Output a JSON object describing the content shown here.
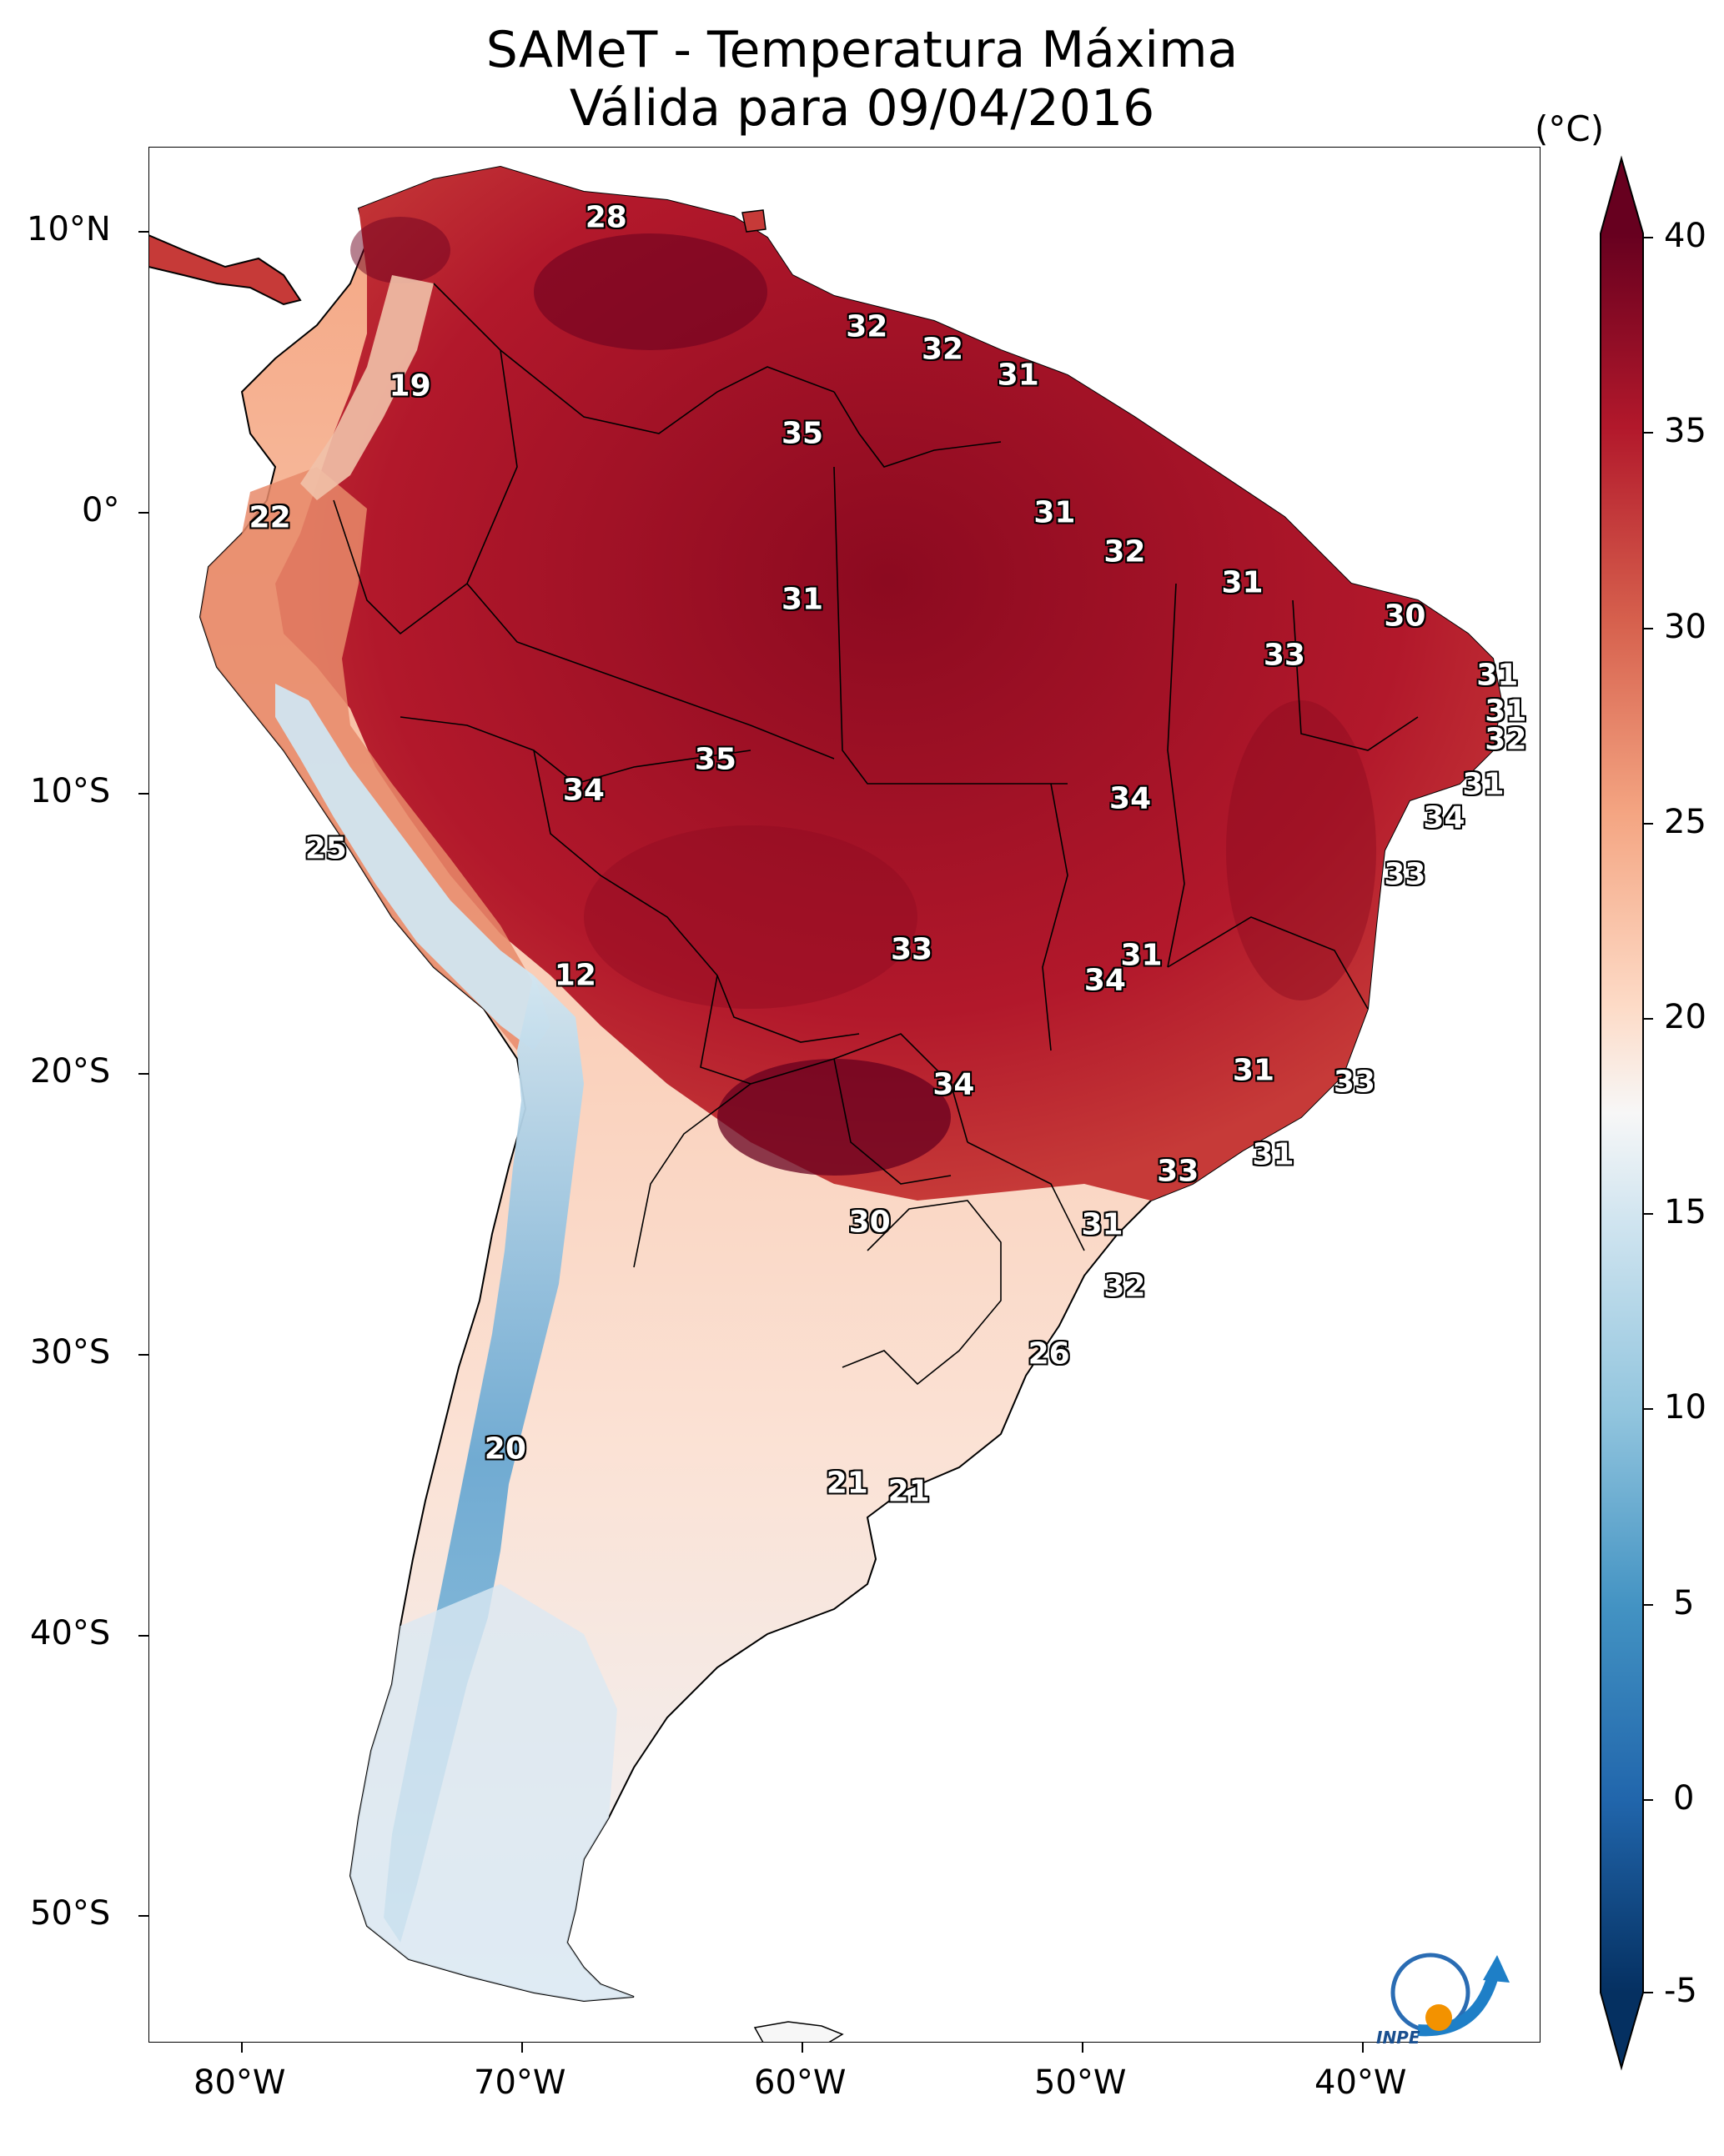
{
  "title": "SAMeT - Temperatura Máxima",
  "subtitle": "Válida para 09/04/2016",
  "colorbar": {
    "unit": "(°C)",
    "ticks": [
      "40",
      "35",
      "30",
      "25",
      "20",
      "15",
      "10",
      "5",
      "0",
      "-5"
    ],
    "range": [
      -5,
      40
    ],
    "colors": [
      "#053061",
      "#2166ac",
      "#4393c3",
      "#92c5de",
      "#d1e5f0",
      "#f7f7f7",
      "#fddbc7",
      "#f4a582",
      "#d6604d",
      "#b2182b",
      "#67001f"
    ]
  },
  "axes": {
    "lon_ticks": [
      "80°W",
      "70°W",
      "60°W",
      "50°W",
      "40°W"
    ],
    "lat_ticks": [
      "10°N",
      "0°",
      "10°S",
      "20°S",
      "30°S",
      "40°S",
      "50°S"
    ]
  },
  "city_labels": [
    {
      "value": "28",
      "lon": -67,
      "lat": 10.5
    },
    {
      "value": "19",
      "lon": -74,
      "lat": 4.5
    },
    {
      "value": "32",
      "lon": -57.7,
      "lat": 6.6
    },
    {
      "value": "32",
      "lon": -55,
      "lat": 5.8
    },
    {
      "value": "31",
      "lon": -52.3,
      "lat": 4.9
    },
    {
      "value": "35",
      "lon": -60,
      "lat": 2.8
    },
    {
      "value": "22",
      "lon": -79,
      "lat": -0.2
    },
    {
      "value": "31",
      "lon": -51,
      "lat": 0.0
    },
    {
      "value": "32",
      "lon": -48.5,
      "lat": -1.4
    },
    {
      "value": "31",
      "lon": -60,
      "lat": -3.1
    },
    {
      "value": "31",
      "lon": -44.3,
      "lat": -2.5
    },
    {
      "value": "30",
      "lon": -38.5,
      "lat": -3.7
    },
    {
      "value": "33",
      "lon": -42.8,
      "lat": -5.1
    },
    {
      "value": "31",
      "lon": -35.2,
      "lat": -5.8
    },
    {
      "value": "31",
      "lon": -34.9,
      "lat": -7.1
    },
    {
      "value": "32",
      "lon": -34.9,
      "lat": -8.1
    },
    {
      "value": "35",
      "lon": -63.1,
      "lat": -8.8
    },
    {
      "value": "34",
      "lon": -67.8,
      "lat": -9.9
    },
    {
      "value": "31",
      "lon": -35.7,
      "lat": -9.7
    },
    {
      "value": "34",
      "lon": -48.3,
      "lat": -10.2
    },
    {
      "value": "34",
      "lon": -37.1,
      "lat": -10.9
    },
    {
      "value": "25",
      "lon": -77,
      "lat": -12
    },
    {
      "value": "33",
      "lon": -38.5,
      "lat": -12.9
    },
    {
      "value": "33",
      "lon": -56.1,
      "lat": -15.6
    },
    {
      "value": "31",
      "lon": -47.9,
      "lat": -15.8
    },
    {
      "value": "34",
      "lon": -49.2,
      "lat": -16.7
    },
    {
      "value": "12",
      "lon": -68.1,
      "lat": -16.5
    },
    {
      "value": "31",
      "lon": -43.9,
      "lat": -19.9
    },
    {
      "value": "33",
      "lon": -40.3,
      "lat": -20.3
    },
    {
      "value": "34",
      "lon": -54.6,
      "lat": -20.4
    },
    {
      "value": "33",
      "lon": -46.6,
      "lat": -23.5
    },
    {
      "value": "31",
      "lon": -43.2,
      "lat": -22.9
    },
    {
      "value": "30",
      "lon": -57.6,
      "lat": -25.3
    },
    {
      "value": "31",
      "lon": -49.3,
      "lat": -25.4
    },
    {
      "value": "32",
      "lon": -48.5,
      "lat": -27.6
    },
    {
      "value": "26",
      "lon": -51.2,
      "lat": -30.0
    },
    {
      "value": "20",
      "lon": -70.6,
      "lat": -33.4
    },
    {
      "value": "21",
      "lon": -58.4,
      "lat": -34.6
    },
    {
      "value": "21",
      "lon": -56.2,
      "lat": -34.9
    }
  ],
  "logo": {
    "text": "INPE"
  }
}
